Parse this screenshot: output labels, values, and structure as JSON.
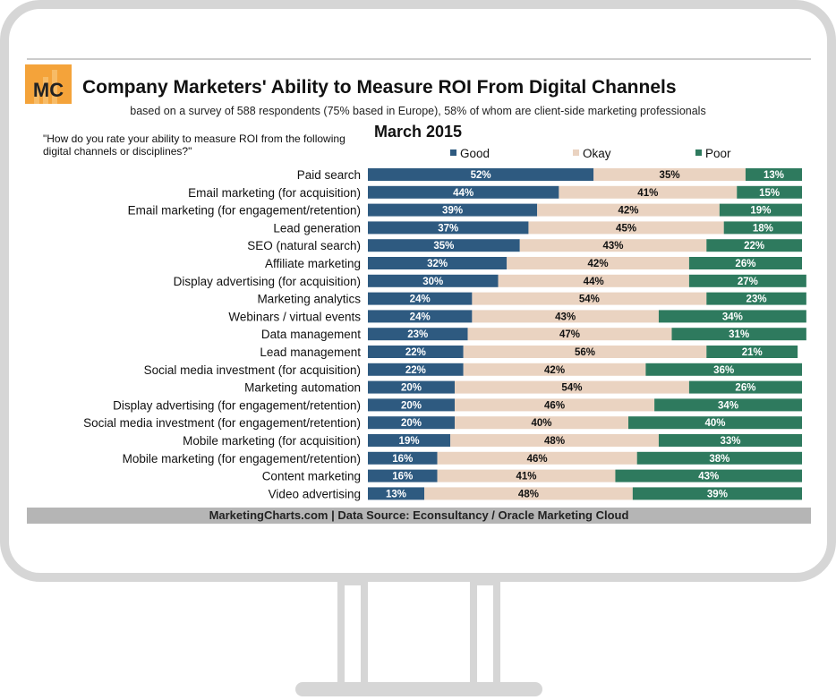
{
  "header": {
    "logo_text": "MC",
    "title": "Company Marketers' Ability to Measure ROI From Digital Channels",
    "subtitle": "based on a survey of 588 respondents (75% based in Europe), 58% of whom are client-side marketing professionals",
    "question": "\"How do you rate your ability to measure ROI from the following digital channels or disciplines?\"",
    "date": "March 2015"
  },
  "footer": {
    "source": "MarketingCharts.com | Data Source: Econsultancy / Oracle Marketing Cloud"
  },
  "colors": {
    "good": "#2e5a80",
    "okay": "#ead3c1",
    "poor": "#2e7a5e",
    "logo_bg": "#f4a33a",
    "source_bar": "#b5b5b5"
  },
  "chart_data": {
    "type": "bar",
    "orientation": "horizontal",
    "stacked": true,
    "normalized_percent": true,
    "legend_position": "top",
    "categories": [
      "Paid search",
      "Email marketing (for acquisition)",
      "Email marketing (for engagement/retention)",
      "Lead generation",
      "SEO (natural search)",
      "Affiliate marketing",
      "Display advertising (for acquisition)",
      "Marketing analytics",
      "Webinars / virtual events",
      "Data management",
      "Lead management",
      "Social media investment (for acquisition)",
      "Marketing automation",
      "Display advertising (for engagement/retention)",
      "Social media investment (for engagement/retention)",
      "Mobile marketing (for acquisition)",
      "Mobile marketing (for engagement/retention)",
      "Content marketing",
      "Video advertising"
    ],
    "series": [
      {
        "name": "Good",
        "values": [
          52,
          44,
          39,
          37,
          35,
          32,
          30,
          24,
          24,
          23,
          22,
          22,
          20,
          20,
          20,
          19,
          16,
          16,
          13
        ]
      },
      {
        "name": "Okay",
        "values": [
          35,
          41,
          42,
          45,
          43,
          42,
          44,
          54,
          43,
          47,
          56,
          42,
          54,
          46,
          40,
          48,
          46,
          41,
          48
        ]
      },
      {
        "name": "Poor",
        "values": [
          13,
          15,
          19,
          18,
          22,
          26,
          27,
          23,
          34,
          31,
          21,
          36,
          26,
          34,
          40,
          33,
          38,
          43,
          39
        ]
      }
    ]
  }
}
